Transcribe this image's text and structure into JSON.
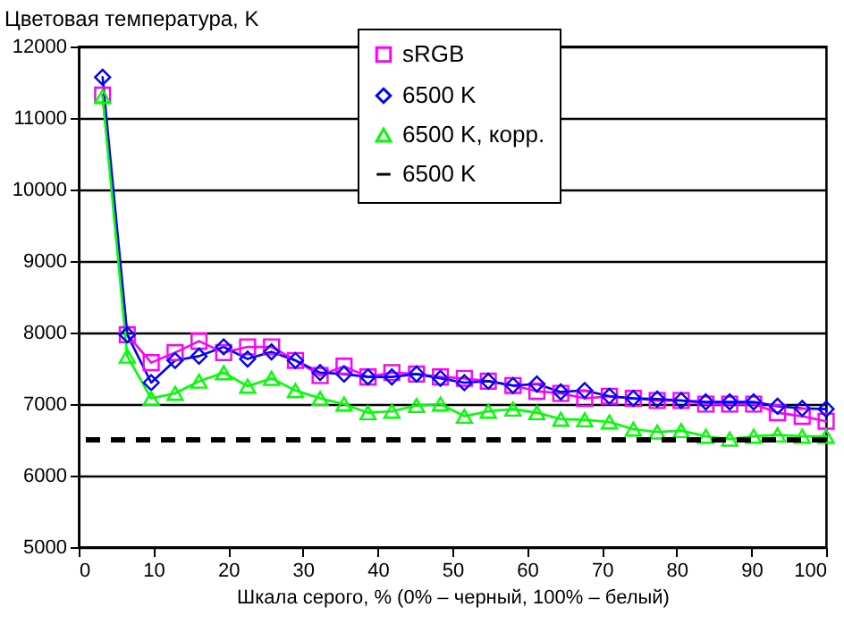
{
  "chart_data": {
    "type": "line",
    "ylabel": "Цветовая температура, K",
    "xlabel": "Шкала серого, % (0% – черный, 100% – белый)",
    "x": [
      3.2,
      6.5,
      9.7,
      12.9,
      16.1,
      19.4,
      22.6,
      25.8,
      29,
      32.3,
      35.5,
      38.7,
      41.9,
      45.2,
      48.4,
      51.6,
      54.8,
      58.1,
      61.3,
      64.5,
      67.7,
      71,
      74.2,
      77.4,
      80.6,
      83.9,
      87.1,
      90.3,
      93.5,
      96.8,
      100
    ],
    "series": [
      {
        "name": "sRGB",
        "color": "#ff00ff",
        "marker": "square",
        "values": [
          11320,
          7970,
          7580,
          7720,
          7880,
          7720,
          7800,
          7800,
          7610,
          7400,
          7530,
          7380,
          7440,
          7420,
          7380,
          7360,
          7320,
          7260,
          7180,
          7150,
          7080,
          7110,
          7080,
          7050,
          7050,
          7000,
          7000,
          7000,
          6880,
          6830,
          6760
        ]
      },
      {
        "name": "6500 K",
        "color": "#0000ff",
        "marker": "diamond",
        "values": [
          11570,
          7970,
          7300,
          7610,
          7670,
          7800,
          7630,
          7730,
          7610,
          7440,
          7420,
          7380,
          7380,
          7420,
          7360,
          7300,
          7320,
          7260,
          7280,
          7170,
          7190,
          7110,
          7080,
          7070,
          7050,
          7030,
          7030,
          7030,
          6970,
          6940,
          6930
        ]
      },
      {
        "name": "6500 K, корр.",
        "color": "#00ff00",
        "marker": "triangle",
        "values": [
          11300,
          7670,
          7080,
          7150,
          7320,
          7440,
          7250,
          7360,
          7190,
          7080,
          7000,
          6880,
          6900,
          6980,
          7000,
          6830,
          6900,
          6930,
          6880,
          6790,
          6780,
          6750,
          6650,
          6610,
          6630,
          6550,
          6510,
          6550,
          6570,
          6550,
          6550
        ]
      }
    ],
    "ref_lines": [
      {
        "axis": "y",
        "value": 6500,
        "label": "6500 K",
        "color": "#000000",
        "line_style": "dashed"
      }
    ],
    "xlim": [
      0,
      100
    ],
    "xticks": [
      0,
      10,
      20,
      30,
      40,
      50,
      60,
      70,
      80,
      90,
      100
    ],
    "ylim": [
      5000,
      12000
    ],
    "yticks": [
      5000,
      6000,
      7000,
      8000,
      9000,
      10000,
      11000,
      12000
    ],
    "grid": "y",
    "legend": "top",
    "line_style": "solid"
  }
}
